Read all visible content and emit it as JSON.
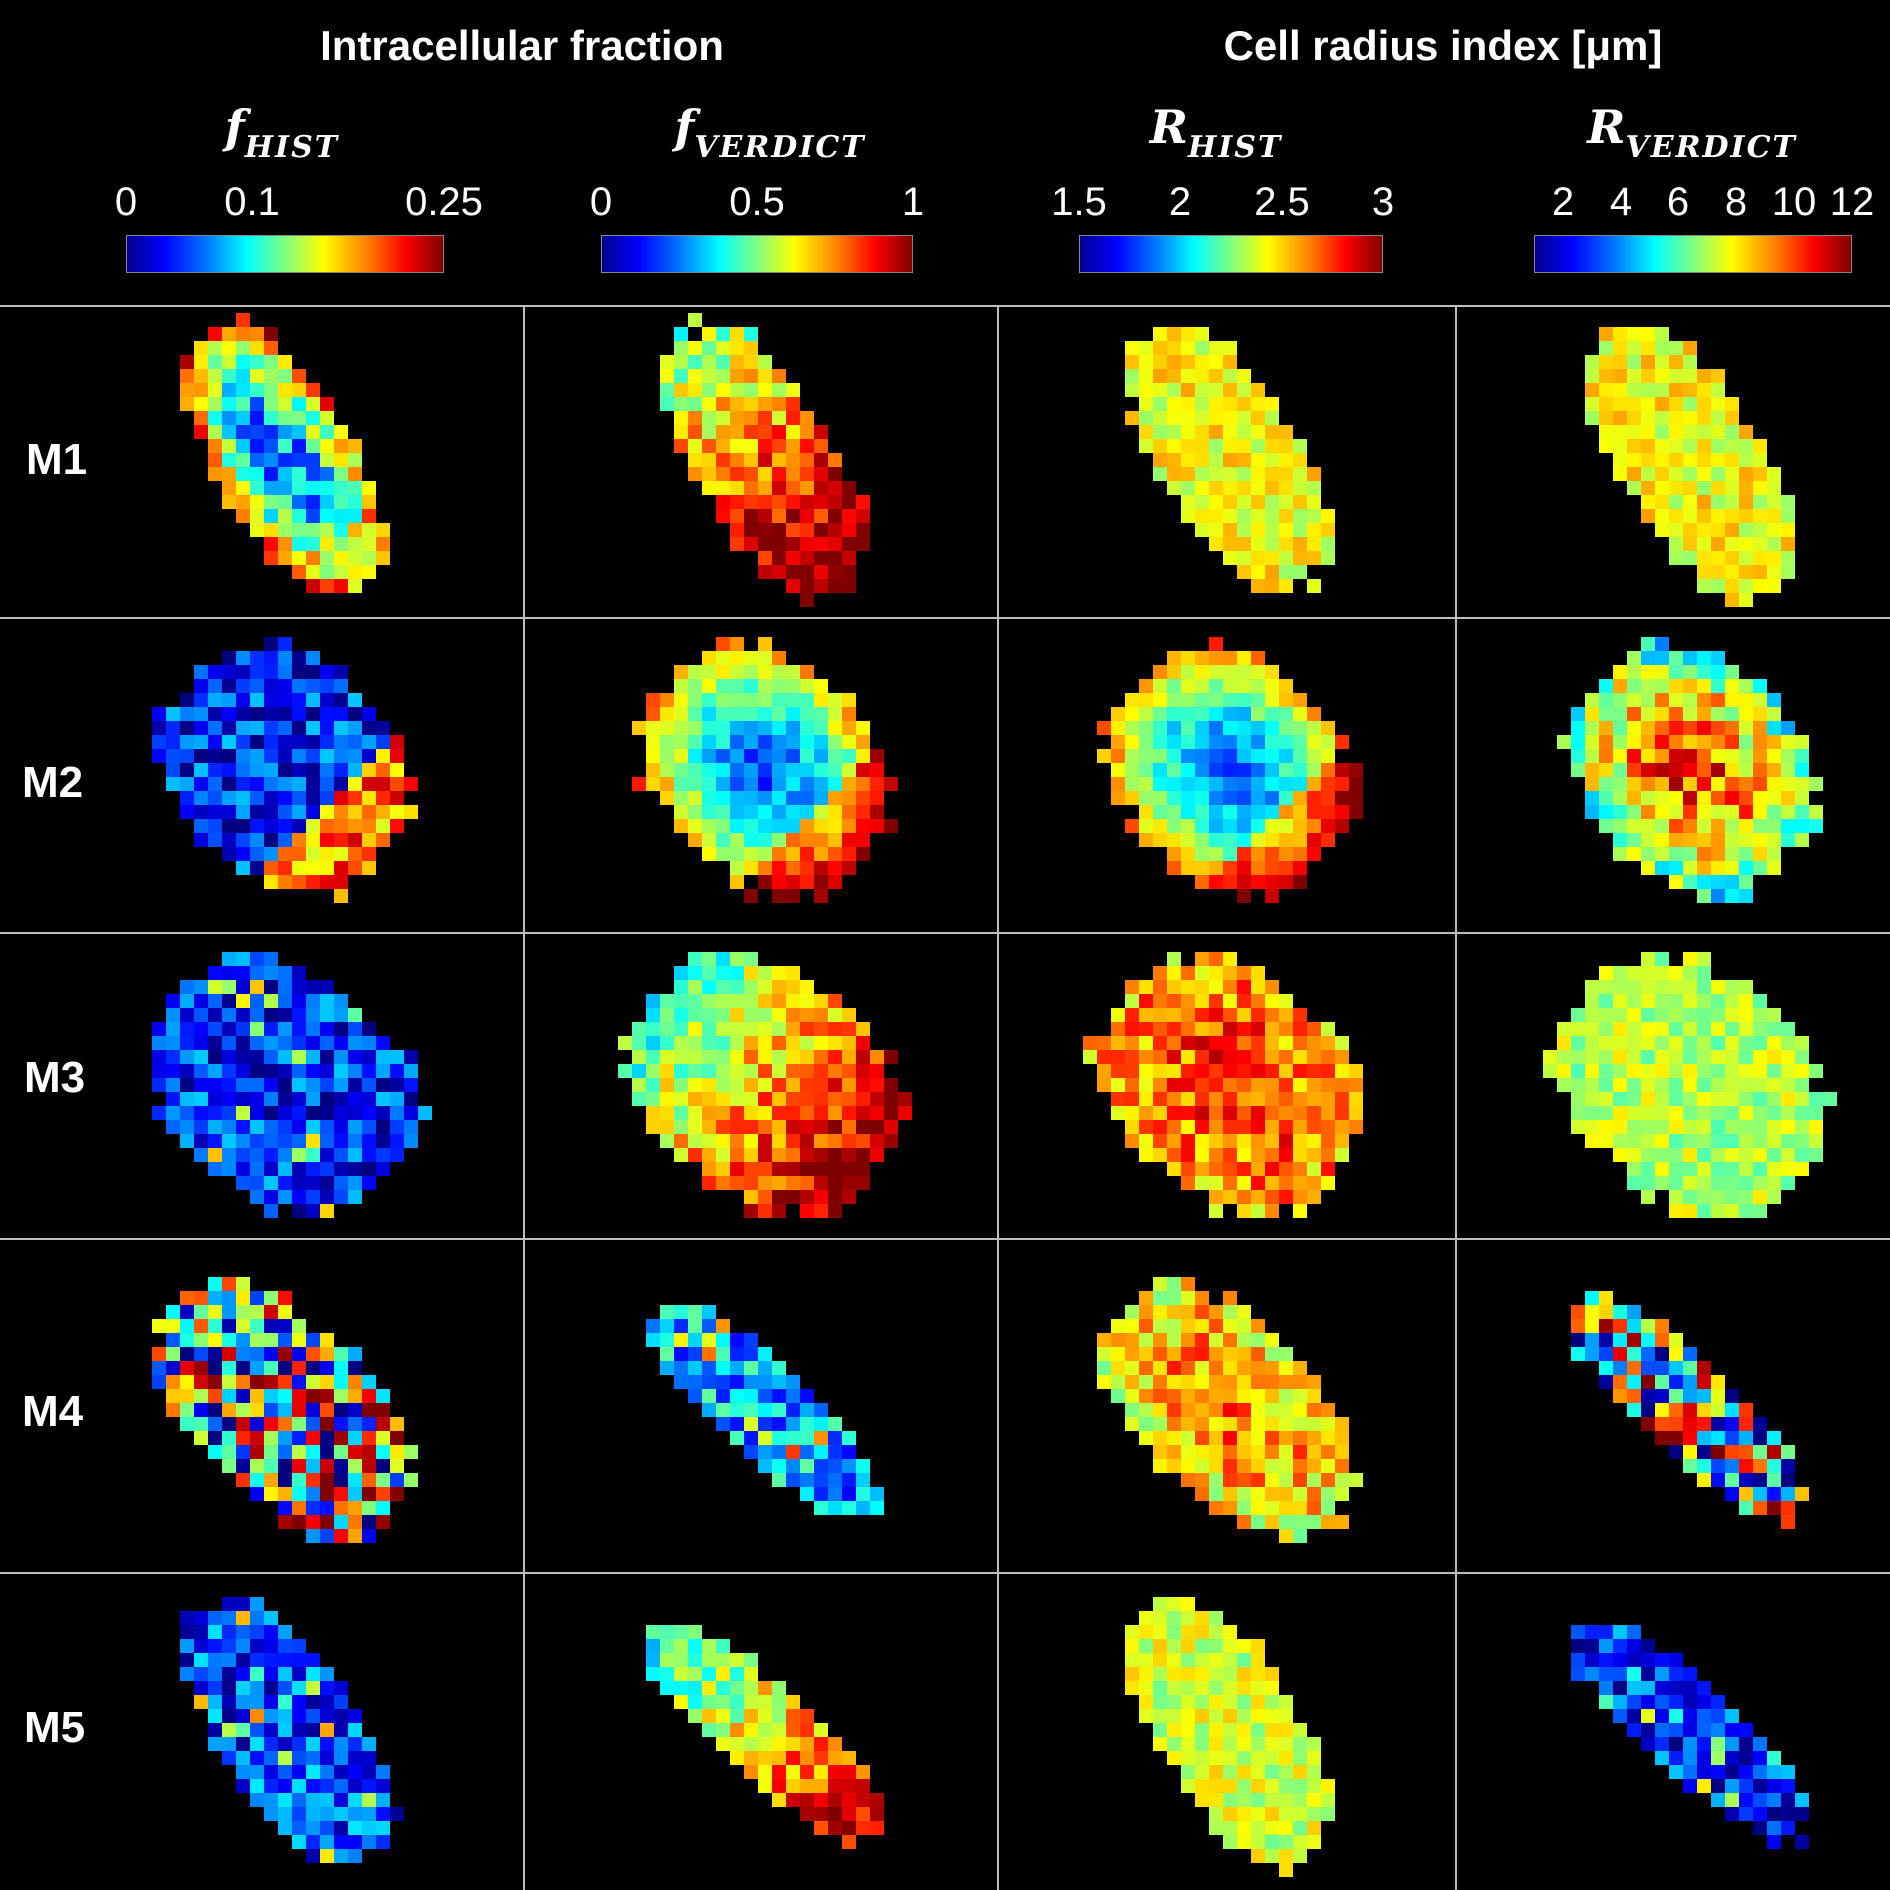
{
  "groups": [
    {
      "title": "Intracellular fraction"
    },
    {
      "title": "Cell radius index [μm]"
    }
  ],
  "columns": [
    {
      "symbol": "f",
      "subscript": "HIST",
      "ticks": [
        "0",
        "0.1",
        "0.25"
      ]
    },
    {
      "symbol": "f",
      "subscript": "VERDICT",
      "ticks": [
        "0",
        "0.5",
        "1"
      ]
    },
    {
      "symbol": "R",
      "subscript": "HIST",
      "ticks": [
        "1.5",
        "2",
        "2.5",
        "3"
      ]
    },
    {
      "symbol": "R",
      "subscript": "VERDICT",
      "ticks": [
        "2",
        "4",
        "6",
        "8",
        "10",
        "12"
      ]
    }
  ],
  "rows": [
    {
      "label": "M1"
    },
    {
      "label": "M2"
    },
    {
      "label": "M3"
    },
    {
      "label": "M4"
    },
    {
      "label": "M5"
    }
  ],
  "colormap": "jet",
  "maps": [
    [
      {
        "shape": "elongated",
        "pattern": "rim-high",
        "mean": 0.45
      },
      {
        "shape": "elongated",
        "pattern": "gradient-high",
        "mean": 0.78
      },
      {
        "shape": "elongated",
        "pattern": "uniform",
        "mean": 0.62
      },
      {
        "shape": "elongated",
        "pattern": "uniform",
        "mean": 0.62
      }
    ],
    [
      {
        "shape": "oval",
        "pattern": "low-edge-high",
        "mean": 0.2
      },
      {
        "shape": "oval",
        "pattern": "center-low",
        "mean": 0.35
      },
      {
        "shape": "oval",
        "pattern": "center-low",
        "mean": 0.45
      },
      {
        "shape": "oval",
        "pattern": "center-high",
        "mean": 0.7
      }
    ],
    [
      {
        "shape": "round",
        "pattern": "low",
        "mean": 0.15
      },
      {
        "shape": "round",
        "pattern": "gradient-high",
        "mean": 0.7
      },
      {
        "shape": "round",
        "pattern": "high",
        "mean": 0.75
      },
      {
        "shape": "round",
        "pattern": "uniform",
        "mean": 0.55
      }
    ],
    [
      {
        "shape": "wide",
        "pattern": "mixed",
        "mean": 0.35
      },
      {
        "shape": "thin",
        "pattern": "low",
        "mean": 0.3
      },
      {
        "shape": "wide",
        "pattern": "high",
        "mean": 0.68
      },
      {
        "shape": "thin",
        "pattern": "mixed",
        "mean": 0.5
      }
    ],
    [
      {
        "shape": "elongated",
        "pattern": "low",
        "mean": 0.18
      },
      {
        "shape": "thin",
        "pattern": "gradient-high",
        "mean": 0.65
      },
      {
        "shape": "elongated",
        "pattern": "uniform",
        "mean": 0.58
      },
      {
        "shape": "thin",
        "pattern": "low",
        "mean": 0.15
      }
    ]
  ]
}
